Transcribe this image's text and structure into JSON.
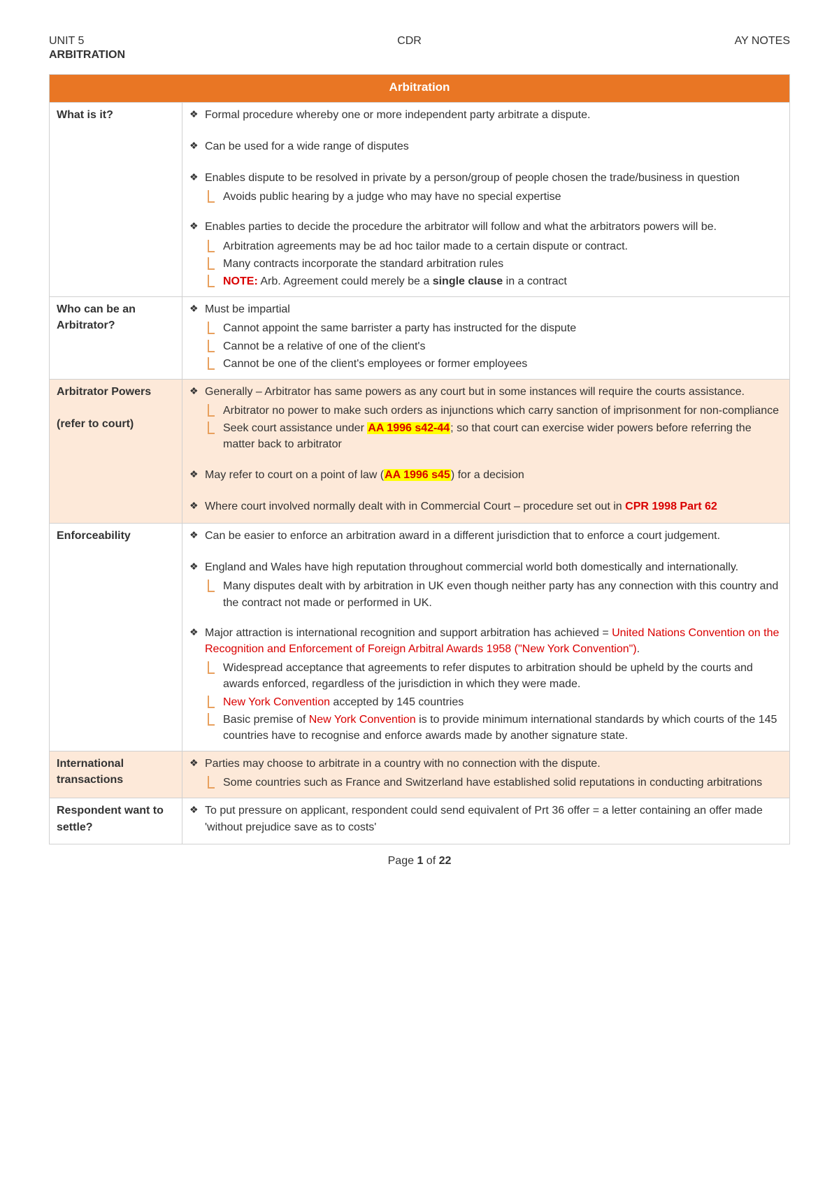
{
  "header": {
    "left": "UNIT 5",
    "center": "CDR",
    "right": "AY NOTES",
    "sub": "ARBITRATION"
  },
  "table_title": "Arbitration",
  "rows": [
    {
      "label": "What is it?",
      "shade": false,
      "blocks": [
        {
          "type": "bullet",
          "items": [
            {
              "text": "Formal procedure whereby one or more independent party arbitrate a dispute."
            }
          ]
        },
        {
          "type": "gap"
        },
        {
          "type": "bullet",
          "items": [
            {
              "text": "Can be used for a wide range of disputes"
            }
          ]
        },
        {
          "type": "gap"
        },
        {
          "type": "bullet",
          "items": [
            {
              "text": "Enables dispute to be resolved in private by a person/group of people chosen the trade/business in question"
            }
          ]
        },
        {
          "type": "sub",
          "items": [
            {
              "text": "Avoids public hearing by a judge who may have no special expertise"
            }
          ]
        },
        {
          "type": "gap"
        },
        {
          "type": "bullet",
          "items": [
            {
              "text": "Enables parties to decide the procedure the arbitrator will follow and what the arbitrators powers will be."
            }
          ]
        },
        {
          "type": "sub",
          "items": [
            {
              "text": "Arbitration agreements may be ad hoc tailor made to a certain dispute or contract."
            },
            {
              "text": "Many contracts incorporate the standard arbitration rules"
            },
            {
              "parts": [
                {
                  "t": "NOTE:",
                  "cls": "txt-red-bold"
                },
                {
                  "t": "  Arb. Agreement could merely be a "
                },
                {
                  "t": "single clause",
                  "cls": "bold"
                },
                {
                  "t": " in a contract"
                }
              ]
            }
          ]
        }
      ]
    },
    {
      "label": "Who can be an Arbitrator?",
      "shade": false,
      "blocks": [
        {
          "type": "bullet",
          "items": [
            {
              "text": "Must be impartial"
            }
          ]
        },
        {
          "type": "sub",
          "items": [
            {
              "text": "Cannot appoint the same barrister a party has instructed for the dispute"
            },
            {
              "text": "Cannot be a relative of one of the client's"
            },
            {
              "text": "Cannot be one of the client's employees or former employees"
            }
          ]
        }
      ]
    },
    {
      "label_parts": [
        "Arbitrator Powers",
        "",
        "(refer to court)"
      ],
      "shade": true,
      "blocks": [
        {
          "type": "bullet",
          "items": [
            {
              "text": "Generally – Arbitrator has same powers as any court but in some instances will require the courts assistance."
            }
          ]
        },
        {
          "type": "sub",
          "items": [
            {
              "text": "Arbitrator no power to make such orders as injunctions which carry sanction of imprisonment for non-compliance"
            },
            {
              "parts": [
                {
                  "t": "Seek court assistance under "
                },
                {
                  "t": "AA 1996 s42-44",
                  "cls": "hl-red-yellow"
                },
                {
                  "t": "; so that court can exercise wider powers before referring the matter back to arbitrator"
                }
              ]
            }
          ]
        },
        {
          "type": "gap"
        },
        {
          "type": "bullet",
          "items": [
            {
              "parts": [
                {
                  "t": "May refer to court on a point of law ("
                },
                {
                  "t": "AA 1996 s45",
                  "cls": "hl-red-yellow"
                },
                {
                  "t": ") for a decision"
                }
              ]
            }
          ]
        },
        {
          "type": "gap"
        },
        {
          "type": "bullet",
          "items": [
            {
              "parts": [
                {
                  "t": "Where court involved normally dealt with in Commercial Court – procedure set out in "
                },
                {
                  "t": "CPR 1998 Part 62",
                  "cls": "txt-red-bold"
                }
              ]
            }
          ]
        }
      ]
    },
    {
      "label": "Enforceability",
      "shade": false,
      "blocks": [
        {
          "type": "bullet",
          "items": [
            {
              "text": "Can be easier to enforce an arbitration award in a different jurisdiction that to enforce a court judgement."
            }
          ]
        },
        {
          "type": "gap"
        },
        {
          "type": "bullet",
          "items": [
            {
              "text": "England and Wales have high reputation throughout commercial world both domestically and internationally."
            }
          ]
        },
        {
          "type": "sub",
          "items": [
            {
              "text": "Many disputes dealt with by arbitration in UK  even though neither party has any connection with this country and the contract not made or performed in UK."
            }
          ]
        },
        {
          "type": "gap"
        },
        {
          "type": "bullet",
          "items": [
            {
              "parts": [
                {
                  "t": "Major attraction is international recognition and support arbitration has achieved = "
                },
                {
                  "t": "United Nations Convention on the Recognition and Enforcement of Foreign Arbitral Awards 1958 (\"New York Convention\")",
                  "cls": "txt-red"
                },
                {
                  "t": "."
                }
              ]
            }
          ]
        },
        {
          "type": "sub",
          "items": [
            {
              "text": "Widespread acceptance that agreements to refer disputes to arbitration should be upheld by the courts and awards enforced, regardless of the jurisdiction in which they were made."
            },
            {
              "parts": [
                {
                  "t": "New York Convention",
                  "cls": "txt-red"
                },
                {
                  "t": " accepted by 145 countries"
                }
              ]
            },
            {
              "parts": [
                {
                  "t": "Basic premise of "
                },
                {
                  "t": "New York Convention",
                  "cls": "txt-red"
                },
                {
                  "t": " is to provide minimum international standards by which courts of the 145 countries have to recognise and enforce awards made by another signature state."
                }
              ]
            }
          ]
        }
      ]
    },
    {
      "label": "International transactions",
      "shade": true,
      "blocks": [
        {
          "type": "bullet",
          "items": [
            {
              "text": "Parties may choose to arbitrate in a country with no connection with the dispute."
            }
          ]
        },
        {
          "type": "sub",
          "items": [
            {
              "text": "Some countries such as France and Switzerland have established solid reputations in conducting arbitrations"
            }
          ]
        }
      ]
    },
    {
      "label": "Respondent want to settle?",
      "shade": false,
      "blocks": [
        {
          "type": "bullet",
          "items": [
            {
              "text": "To put pressure on applicant, respondent could send equivalent of Prt 36 offer = a letter containing an offer made 'without prejudice save as to costs'"
            }
          ]
        }
      ]
    }
  ],
  "footer": {
    "prefix": "Page ",
    "current": "1",
    "sep": " of ",
    "total": "22"
  },
  "colors": {
    "header_bg": "#e97624",
    "shade_bg": "#fde9d9",
    "border": "#d0d0d0",
    "red": "#d90000",
    "yellow": "#ffff00"
  }
}
